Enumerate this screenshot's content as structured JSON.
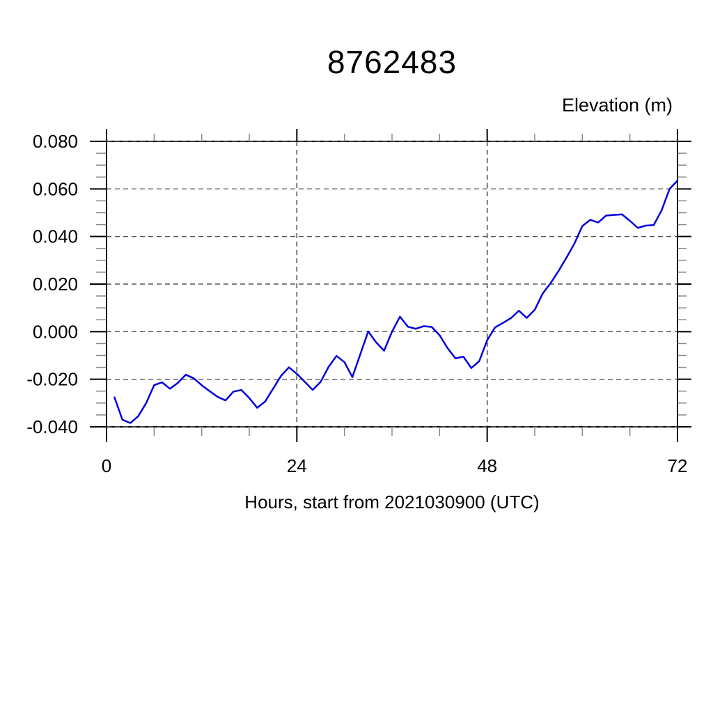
{
  "page": {
    "background_color": "#ffffff"
  },
  "chart_data": {
    "type": "line",
    "title": "8762483",
    "xlabel": "Hours, start from 2021030900 (UTC)",
    "ylabel": "Elevation (m)",
    "xlim": [
      0,
      72
    ],
    "ylim": [
      -0.04,
      0.08
    ],
    "x_major_ticks": [
      0,
      24,
      48,
      72
    ],
    "x_tick_labels": [
      "0",
      "24",
      "48",
      "72"
    ],
    "x_minor_step": 6,
    "y_major_ticks": [
      0.08,
      0.06,
      0.04,
      0.02,
      0.0,
      -0.02,
      -0.04
    ],
    "y_tick_labels": [
      "0.080",
      "0.060",
      "0.040",
      "0.020",
      "0.000",
      "-0.020",
      "-0.040"
    ],
    "y_minor_step": 0.005,
    "grid": "dashed lines at every major tick, both axes",
    "legend_position": "none",
    "colors": {
      "line": "#0000dd",
      "frame": "#000000",
      "grid": "#555555",
      "minor_tick": "#888888",
      "text": "#000000"
    },
    "series": [
      {
        "name": "elevation",
        "color": "#0000dd",
        "points": [
          [
            1,
            -0.0276
          ],
          [
            2,
            -0.037
          ],
          [
            3,
            -0.0384
          ],
          [
            4,
            -0.0355
          ],
          [
            5,
            -0.03
          ],
          [
            6,
            -0.0225
          ],
          [
            7,
            -0.0213
          ],
          [
            8,
            -0.024
          ],
          [
            9,
            -0.0215
          ],
          [
            10,
            -0.0181
          ],
          [
            11,
            -0.0196
          ],
          [
            12,
            -0.0225
          ],
          [
            13,
            -0.025
          ],
          [
            14,
            -0.0274
          ],
          [
            15,
            -0.0289
          ],
          [
            16,
            -0.0252
          ],
          [
            17,
            -0.0245
          ],
          [
            18,
            -0.0279
          ],
          [
            19,
            -0.032
          ],
          [
            20,
            -0.0294
          ],
          [
            21,
            -0.024
          ],
          [
            22,
            -0.0186
          ],
          [
            23,
            -0.015
          ],
          [
            24,
            -0.0177
          ],
          [
            25,
            -0.0211
          ],
          [
            26,
            -0.0245
          ],
          [
            27,
            -0.0211
          ],
          [
            28,
            -0.0148
          ],
          [
            29,
            -0.0102
          ],
          [
            30,
            -0.0128
          ],
          [
            31,
            -0.0191
          ],
          [
            32,
            -0.0095
          ],
          [
            33,
            0.0001
          ],
          [
            34,
            -0.0045
          ],
          [
            35,
            -0.008
          ],
          [
            36,
            0.0
          ],
          [
            37,
            0.0063
          ],
          [
            38,
            0.0021
          ],
          [
            39,
            0.0012
          ],
          [
            40,
            0.0023
          ],
          [
            41,
            0.002
          ],
          [
            42,
            -0.0015
          ],
          [
            43,
            -0.0069
          ],
          [
            44,
            -0.0112
          ],
          [
            45,
            -0.0105
          ],
          [
            46,
            -0.0153
          ],
          [
            47,
            -0.0124
          ],
          [
            48,
            -0.0036
          ],
          [
            49,
            0.0018
          ],
          [
            50,
            0.0037
          ],
          [
            51,
            0.0057
          ],
          [
            52,
            0.0088
          ],
          [
            53,
            0.0058
          ],
          [
            54,
            0.0092
          ],
          [
            55,
            0.016
          ],
          [
            56,
            0.0204
          ],
          [
            57,
            0.0255
          ],
          [
            58,
            0.0311
          ],
          [
            59,
            0.037
          ],
          [
            60,
            0.0444
          ],
          [
            61,
            0.047
          ],
          [
            62,
            0.0459
          ],
          [
            63,
            0.0488
          ],
          [
            64,
            0.0491
          ],
          [
            65,
            0.0493
          ],
          [
            66,
            0.0466
          ],
          [
            67,
            0.0436
          ],
          [
            68,
            0.0446
          ],
          [
            69,
            0.0448
          ],
          [
            70,
            0.051
          ],
          [
            71,
            0.06
          ],
          [
            72,
            0.0635
          ]
        ]
      }
    ]
  }
}
